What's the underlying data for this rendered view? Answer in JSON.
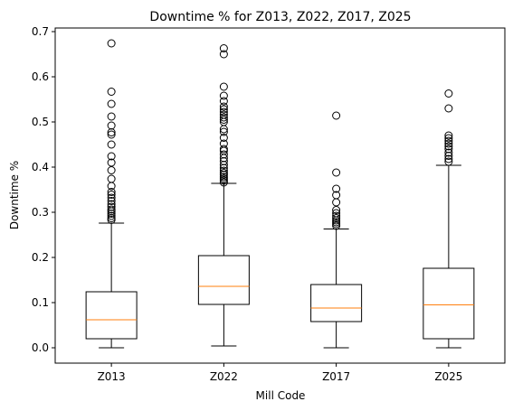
{
  "chart_data": {
    "type": "boxplot",
    "title": "Downtime % for Z013, Z022, Z017, Z025",
    "xlabel": "Mill Code",
    "ylabel": "Downtime %",
    "ylim": [
      -0.034,
      0.708
    ],
    "yticks": [
      0.0,
      0.1,
      0.2,
      0.3,
      0.4,
      0.5,
      0.6,
      0.7
    ],
    "ytick_labels": [
      "0.0",
      "0.1",
      "0.2",
      "0.3",
      "0.4",
      "0.5",
      "0.6",
      "0.7"
    ],
    "grid": false,
    "categories": [
      "Z013",
      "Z022",
      "Z017",
      "Z025"
    ],
    "colors": {
      "box": "#000000",
      "median": "#ff7f0e",
      "flier": "#000000",
      "background": "#ffffff"
    },
    "boxes": [
      {
        "category": "Z013",
        "whisker_low": 0.0,
        "q1": 0.02,
        "median": 0.062,
        "q3": 0.124,
        "whisker_high": 0.276,
        "fliers": [
          0.283,
          0.287,
          0.292,
          0.297,
          0.302,
          0.306,
          0.312,
          0.318,
          0.325,
          0.332,
          0.339,
          0.345,
          0.358,
          0.374,
          0.393,
          0.41,
          0.424,
          0.45,
          0.472,
          0.477,
          0.492,
          0.512,
          0.54,
          0.567,
          0.674
        ]
      },
      {
        "category": "Z022",
        "whisker_low": 0.004,
        "q1": 0.096,
        "median": 0.136,
        "q3": 0.204,
        "whisker_high": 0.364,
        "fliers": [
          0.366,
          0.37,
          0.374,
          0.378,
          0.383,
          0.387,
          0.392,
          0.398,
          0.405,
          0.413,
          0.42,
          0.428,
          0.436,
          0.44,
          0.452,
          0.465,
          0.478,
          0.484,
          0.5,
          0.505,
          0.51,
          0.516,
          0.522,
          0.528,
          0.534,
          0.546,
          0.558,
          0.578,
          0.65,
          0.663
        ]
      },
      {
        "category": "Z017",
        "whisker_low": 0.0,
        "q1": 0.058,
        "median": 0.088,
        "q3": 0.14,
        "whisker_high": 0.263,
        "fliers": [
          0.27,
          0.274,
          0.278,
          0.282,
          0.287,
          0.292,
          0.298,
          0.305,
          0.322,
          0.338,
          0.352,
          0.388,
          0.514
        ]
      },
      {
        "category": "Z025",
        "whisker_low": 0.0,
        "q1": 0.02,
        "median": 0.095,
        "q3": 0.176,
        "whisker_high": 0.404,
        "fliers": [
          0.412,
          0.418,
          0.425,
          0.432,
          0.44,
          0.446,
          0.452,
          0.458,
          0.464,
          0.47,
          0.53,
          0.563
        ]
      }
    ]
  }
}
